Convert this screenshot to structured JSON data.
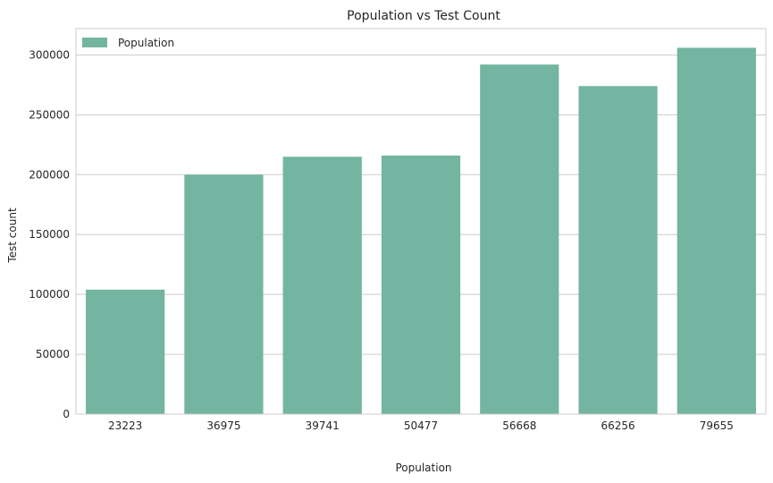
{
  "chart_data": {
    "type": "bar",
    "title": "Population vs Test Count",
    "xlabel": "Population",
    "ylabel": "Test count",
    "categories": [
      "23223",
      "36975",
      "39741",
      "50477",
      "56668",
      "66256",
      "79655"
    ],
    "series": [
      {
        "name": "Population",
        "values": [
          104000,
          200000,
          215000,
          216000,
          292000,
          274000,
          306000
        ]
      }
    ],
    "ylim": [
      0,
      322000
    ],
    "yticks": [
      0,
      50000,
      100000,
      150000,
      200000,
      250000,
      300000
    ],
    "ytick_labels": [
      "0",
      "50000",
      "100000",
      "150000",
      "200000",
      "250000",
      "300000"
    ],
    "grid": true,
    "legend_position": "top-left",
    "bar_color": "#73b5a0",
    "grid_color": "#cccccc",
    "axis_color": "#cccccc",
    "text_color": "#262626"
  }
}
